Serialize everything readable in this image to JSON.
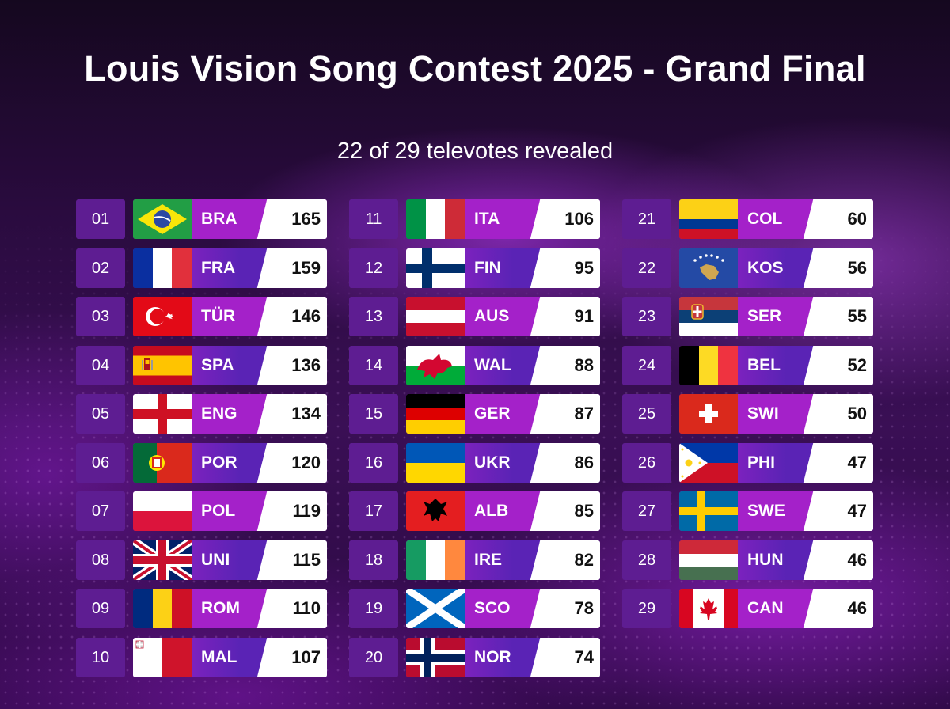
{
  "header": {
    "title": "Louis Vision Song Contest 2025 - Grand Final",
    "subtitle": "22 of 29 televotes revealed"
  },
  "colors": {
    "rank_bg": "#5e1d92",
    "bar_magenta": "#a421c9",
    "bar_indigo": "#5a23b5",
    "points_bg": "#ffffff"
  },
  "entries": [
    {
      "rank": "01",
      "code": "BRA",
      "points": "165",
      "flag": "flag-brazil"
    },
    {
      "rank": "02",
      "code": "FRA",
      "points": "159",
      "flag": "flag-france"
    },
    {
      "rank": "03",
      "code": "TÜR",
      "points": "146",
      "flag": "flag-turkey"
    },
    {
      "rank": "04",
      "code": "SPA",
      "points": "136",
      "flag": "flag-spain"
    },
    {
      "rank": "05",
      "code": "ENG",
      "points": "134",
      "flag": "flag-england"
    },
    {
      "rank": "06",
      "code": "POR",
      "points": "120",
      "flag": "flag-portugal"
    },
    {
      "rank": "07",
      "code": "POL",
      "points": "119",
      "flag": "flag-poland"
    },
    {
      "rank": "08",
      "code": "UNI",
      "points": "115",
      "flag": "flag-united-kingdom"
    },
    {
      "rank": "09",
      "code": "ROM",
      "points": "110",
      "flag": "flag-romania"
    },
    {
      "rank": "10",
      "code": "MAL",
      "points": "107",
      "flag": "flag-malta"
    },
    {
      "rank": "11",
      "code": "ITA",
      "points": "106",
      "flag": "flag-italy"
    },
    {
      "rank": "12",
      "code": "FIN",
      "points": "95",
      "flag": "flag-finland"
    },
    {
      "rank": "13",
      "code": "AUS",
      "points": "91",
      "flag": "flag-austria"
    },
    {
      "rank": "14",
      "code": "WAL",
      "points": "88",
      "flag": "flag-wales"
    },
    {
      "rank": "15",
      "code": "GER",
      "points": "87",
      "flag": "flag-germany"
    },
    {
      "rank": "16",
      "code": "UKR",
      "points": "86",
      "flag": "flag-ukraine"
    },
    {
      "rank": "17",
      "code": "ALB",
      "points": "85",
      "flag": "flag-albania"
    },
    {
      "rank": "18",
      "code": "IRE",
      "points": "82",
      "flag": "flag-ireland"
    },
    {
      "rank": "19",
      "code": "SCO",
      "points": "78",
      "flag": "flag-scotland"
    },
    {
      "rank": "20",
      "code": "NOR",
      "points": "74",
      "flag": "flag-norway"
    },
    {
      "rank": "21",
      "code": "COL",
      "points": "60",
      "flag": "flag-colombia"
    },
    {
      "rank": "22",
      "code": "KOS",
      "points": "56",
      "flag": "flag-kosovo"
    },
    {
      "rank": "23",
      "code": "SER",
      "points": "55",
      "flag": "flag-serbia"
    },
    {
      "rank": "24",
      "code": "BEL",
      "points": "52",
      "flag": "flag-belgium"
    },
    {
      "rank": "25",
      "code": "SWI",
      "points": "50",
      "flag": "flag-switzerland"
    },
    {
      "rank": "26",
      "code": "PHI",
      "points": "47",
      "flag": "flag-philippines"
    },
    {
      "rank": "27",
      "code": "SWE",
      "points": "47",
      "flag": "flag-sweden"
    },
    {
      "rank": "28",
      "code": "HUN",
      "points": "46",
      "flag": "flag-hungary"
    },
    {
      "rank": "29",
      "code": "CAN",
      "points": "46",
      "flag": "flag-canada"
    }
  ]
}
